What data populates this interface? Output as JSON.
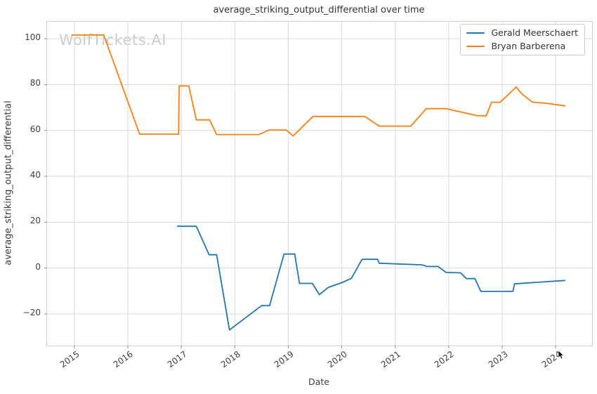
{
  "title": "average_striking_output_differential over time",
  "watermark": "WolfTickets.AI",
  "colors": {
    "series_blue": "#1f77b4",
    "series_orange": "#ff7f0e",
    "grid": "#d9d9d9",
    "spine": "#cfcfcf",
    "tick_mark": "#8f8f8f",
    "text": "#3d3d3d",
    "watermark": "#cccccc"
  },
  "chart_data": {
    "type": "line",
    "title": "average_striking_output_differential over time",
    "xlabel": "Date",
    "ylabel": "average_striking_output_differential",
    "xlim": [
      2014.49,
      2024.68
    ],
    "ylim": [
      -33.8,
      107.4
    ],
    "x_ticks": [
      2015,
      2016,
      2017,
      2018,
      2019,
      2020,
      2021,
      2022,
      2023,
      2024
    ],
    "y_ticks": [
      -20,
      0,
      20,
      40,
      60,
      80,
      100
    ],
    "grid": true,
    "legend_position": "upper right",
    "series": [
      {
        "name": "Gerald Meerschaert",
        "color": "#1f77b4",
        "points": [
          [
            2016.92,
            18.2
          ],
          [
            2017.28,
            18.2
          ],
          [
            2017.52,
            5.8
          ],
          [
            2017.66,
            5.8
          ],
          [
            2017.9,
            -27.0
          ],
          [
            2018.5,
            -16.4
          ],
          [
            2018.65,
            -16.4
          ],
          [
            2018.92,
            6.1
          ],
          [
            2019.12,
            6.1
          ],
          [
            2019.21,
            -6.7
          ],
          [
            2019.45,
            -6.7
          ],
          [
            2019.58,
            -11.6
          ],
          [
            2019.75,
            -8.4
          ],
          [
            2020.0,
            -6.4
          ],
          [
            2020.18,
            -4.5
          ],
          [
            2020.38,
            3.8
          ],
          [
            2020.67,
            3.8
          ],
          [
            2020.7,
            2.1
          ],
          [
            2021.5,
            1.4
          ],
          [
            2021.6,
            0.7
          ],
          [
            2021.8,
            0.7
          ],
          [
            2021.95,
            -1.9
          ],
          [
            2022.22,
            -2.1
          ],
          [
            2022.33,
            -4.6
          ],
          [
            2022.49,
            -4.6
          ],
          [
            2022.6,
            -10.2
          ],
          [
            2023.2,
            -10.2
          ],
          [
            2023.23,
            -6.9
          ],
          [
            2023.6,
            -6.3
          ],
          [
            2024.18,
            -5.4
          ]
        ]
      },
      {
        "name": "Bryan Barberena",
        "color": "#ff7f0e",
        "points": [
          [
            2014.95,
            101.6
          ],
          [
            2015.55,
            101.6
          ],
          [
            2016.22,
            58.4
          ],
          [
            2016.95,
            58.4
          ],
          [
            2016.96,
            79.4
          ],
          [
            2017.14,
            79.4
          ],
          [
            2017.28,
            64.6
          ],
          [
            2017.53,
            64.6
          ],
          [
            2017.66,
            58.2
          ],
          [
            2018.45,
            58.2
          ],
          [
            2018.64,
            60.2
          ],
          [
            2018.96,
            60.2
          ],
          [
            2019.09,
            57.6
          ],
          [
            2019.46,
            66.1
          ],
          [
            2020.43,
            66.1
          ],
          [
            2020.7,
            61.9
          ],
          [
            2021.29,
            61.9
          ],
          [
            2021.58,
            69.5
          ],
          [
            2021.95,
            69.5
          ],
          [
            2022.54,
            66.4
          ],
          [
            2022.7,
            66.4
          ],
          [
            2022.8,
            72.3
          ],
          [
            2022.96,
            72.3
          ],
          [
            2023.26,
            78.9
          ],
          [
            2023.36,
            76.1
          ],
          [
            2023.56,
            72.4
          ],
          [
            2023.8,
            71.9
          ],
          [
            2024.18,
            70.7
          ]
        ]
      }
    ]
  }
}
